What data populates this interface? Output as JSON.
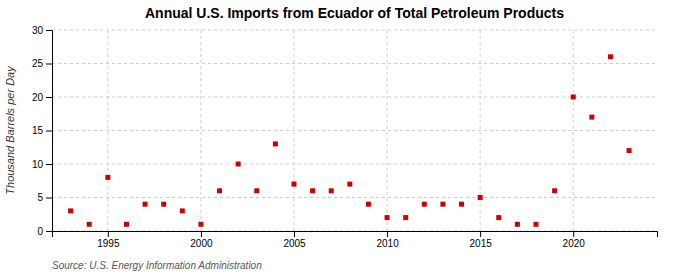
{
  "chart_data": {
    "type": "scatter",
    "title": "Annual U.S. Imports from Ecuador of Total Petroleum Products",
    "ylabel": "Thousand Barrels per Day",
    "source": "Source: U.S. Energy Information Administration",
    "x": [
      1993,
      1994,
      1995,
      1996,
      1997,
      1998,
      1999,
      2000,
      2001,
      2002,
      2003,
      2004,
      2005,
      2006,
      2007,
      2008,
      2009,
      2010,
      2011,
      2012,
      2013,
      2014,
      2015,
      2016,
      2017,
      2018,
      2019,
      2020,
      2021,
      2022,
      2023
    ],
    "values": [
      3,
      1,
      8,
      1,
      4,
      4,
      3,
      1,
      6,
      10,
      6,
      13,
      7,
      6,
      6,
      7,
      4,
      2,
      2,
      4,
      4,
      4,
      5,
      2,
      1,
      1,
      6,
      20,
      17,
      26,
      12
    ],
    "color": "#CC0000",
    "marker": "square",
    "xlim": [
      1992,
      2024.5
    ],
    "xticks": [
      1995,
      2000,
      2005,
      2010,
      2015,
      2020
    ],
    "ylim": [
      0,
      30
    ],
    "yticks": [
      0,
      5,
      10,
      15,
      20,
      25,
      30
    ],
    "grid": true
  }
}
